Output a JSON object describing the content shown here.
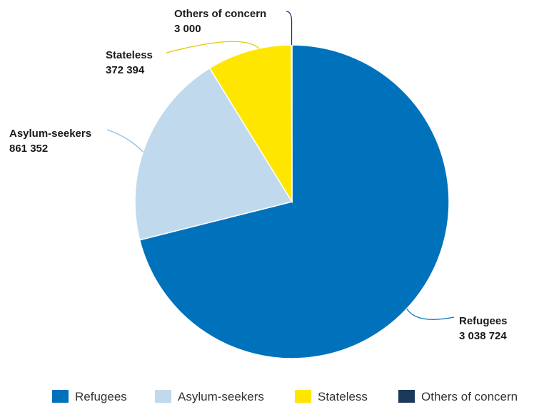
{
  "chart_data": {
    "type": "pie",
    "categories": [
      "Refugees",
      "Asylum-seekers",
      "Stateless",
      "Others of concern"
    ],
    "values": [
      3038724,
      861352,
      372394,
      3000
    ],
    "value_labels": [
      "3 038 724",
      "861 352",
      "372 394",
      "3 000"
    ],
    "colors": [
      "#0072bc",
      "#c0d9ec",
      "#ffe600",
      "#1a3a5c"
    ],
    "leader_colors": [
      "#0072bc",
      "#8fbde0",
      "#e3cc00",
      "#1a3a5c"
    ],
    "legend": "bottom"
  }
}
